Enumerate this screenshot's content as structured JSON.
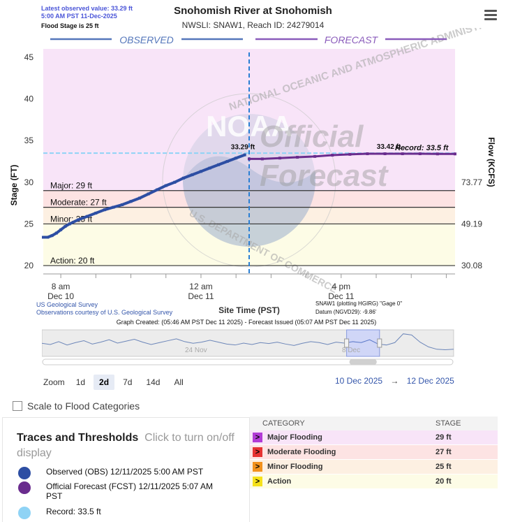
{
  "header": {
    "latest_line1": "Latest observed value: 33.29 ft",
    "latest_line2": "5:00 AM PST 11-Dec-2025",
    "flood_stage": "Flood Stage is 25 ft",
    "title": "Snohomish River at Snohomish",
    "subtitle": "NWSLI: SNAW1, Reach ID: 24279014",
    "menu_icon": "hamburger-menu-icon"
  },
  "chart_data": {
    "type": "line",
    "ylabel": "Stage (FT)",
    "y2label": "Flow (KCFS)",
    "xlabel": "Site Time (PST)",
    "ylim": [
      19,
      46
    ],
    "yticks": [
      "20",
      "25",
      "30",
      "35",
      "40",
      "45"
    ],
    "flow_ticks": [
      {
        "stage": 20,
        "label": "30.08"
      },
      {
        "stage": 25,
        "label": "49.19"
      },
      {
        "stage": 30,
        "label": "73.77"
      }
    ],
    "x_ticks": [
      {
        "hour": 8,
        "line1": "8 am",
        "line2": "Dec 10"
      },
      {
        "hour": 24,
        "line1": "12 am",
        "line2": "Dec 11"
      },
      {
        "hour": 40,
        "line1": "4 pm",
        "line2": "Dec 11"
      }
    ],
    "x_range_hours": [
      6,
      53
    ],
    "observed_label": "OBSERVED",
    "forecast_label": "FORECAST",
    "now_hour": 29.5,
    "thresholds": [
      {
        "name": "Major",
        "label": "Major: 29 ft",
        "value": 29,
        "color": "#f8e4f8"
      },
      {
        "name": "Moderate",
        "label": "Moderate: 27 ft",
        "value": 27,
        "color": "#fde3e3"
      },
      {
        "name": "Minor",
        "label": "Minor: 25 ft",
        "value": 25,
        "color": "#fdf0e2"
      },
      {
        "name": "Action",
        "label": "Action: 20 ft",
        "value": 20,
        "color": "#fdfce6"
      }
    ],
    "record": {
      "value": 33.5,
      "label": "Record: 33.5 ft"
    },
    "series": [
      {
        "name": "Observed (OBS) 12/11/2025 5:00 AM PST",
        "color": "#2d4ea3",
        "x": [
          6,
          6.5,
          7,
          7.5,
          8,
          8.5,
          9,
          10,
          11,
          12,
          13,
          14,
          15,
          16,
          17,
          18,
          19,
          20,
          21,
          22,
          23,
          24,
          25,
          26,
          27,
          28,
          29
        ],
        "y": [
          23.4,
          23.4,
          23.6,
          23.9,
          24.3,
          24.7,
          25.0,
          25.5,
          25.9,
          26.3,
          26.7,
          27.0,
          27.3,
          27.7,
          28.1,
          28.6,
          29.1,
          29.6,
          30.0,
          30.5,
          30.9,
          31.3,
          31.7,
          32.1,
          32.5,
          32.9,
          33.29
        ]
      },
      {
        "name": "Official Forecast (FCST) 12/11/2025 5:07 AM PST",
        "color": "#6a2c8e",
        "x": [
          29.5,
          31,
          33,
          35,
          37,
          39,
          41,
          43,
          45,
          47,
          49,
          51,
          53
        ],
        "y": [
          32.8,
          32.8,
          32.9,
          33.0,
          33.1,
          33.25,
          33.35,
          33.42,
          33.42,
          33.42,
          33.42,
          33.4,
          33.4
        ]
      }
    ],
    "callouts": [
      "33.29 ft",
      "33.42 ft"
    ],
    "watermark_line1": "Official",
    "watermark_line2": "Forecast",
    "seal_text": "NATIONAL OCEANIC AND ATMOSPHERIC ADMINISTRATION",
    "seal_text_bottom": "U.S. DEPARTMENT OF COMMERCE",
    "noaa_text": "NOAA",
    "credit_line1": "US Geological Survey",
    "credit_line2": "Observations courtesy of U.S. Geological Survey",
    "datum_line1": "SNAW1 (plotting HGIRG) \"Gage 0\"",
    "datum_line2": "Datum (NGVD29): -9.86'",
    "created": "Graph Created: (05:46 AM PST Dec 11 2025) - Forecast Issued (05:07 AM PST Dec 11 2025)"
  },
  "navigator": {
    "labels": [
      "24 Nov",
      "8 Dec"
    ],
    "trace": [
      0.55,
      0.5,
      0.62,
      0.48,
      0.58,
      0.66,
      0.52,
      0.6,
      0.7,
      0.56,
      0.64,
      0.72,
      0.6,
      0.5,
      0.58,
      0.66,
      0.74,
      0.62,
      0.55,
      0.6,
      0.68,
      0.6,
      0.52,
      0.48,
      0.56,
      0.5,
      0.58,
      0.54,
      0.6,
      0.52,
      0.46,
      0.55,
      0.62,
      0.58,
      0.5,
      0.6,
      0.56,
      0.62,
      0.58,
      0.7,
      0.52,
      0.48,
      0.58,
      0.95,
      0.9,
      0.6,
      0.4,
      0.3,
      0.28,
      0.3
    ],
    "window_start": 0.74,
    "window_end": 0.82
  },
  "zoom": {
    "label": "Zoom",
    "buttons": [
      "1d",
      "2d",
      "7d",
      "14d",
      "All"
    ],
    "selected": "2d",
    "range_from": "10 Dec 2025",
    "range_arrow": "→",
    "range_to": "12 Dec 2025"
  },
  "scale_checkbox": {
    "label": "Scale to Flood Categories",
    "checked": false
  },
  "traces": {
    "title": "Traces and Thresholds",
    "hint": "Click to turn on/off display",
    "items": [
      {
        "label": "Observed (OBS) 12/11/2025 5:00 AM PST",
        "color": "#2d4ea3"
      },
      {
        "label": "Official Forecast (FCST) 12/11/2025 5:07 AM PST",
        "color": "#6a2c8e"
      },
      {
        "label": "Record: 33.5 ft",
        "color": "#8fd3f5"
      }
    ]
  },
  "categories": {
    "header_category": "CATEGORY",
    "header_stage": "STAGE",
    "rows": [
      {
        "name": "Major Flooding",
        "stage": "29 ft",
        "tag_color": "#b23ad6",
        "bg": "#f8e4f8"
      },
      {
        "name": "Moderate Flooding",
        "stage": "27 ft",
        "tag_color": "#e63232",
        "bg": "#fde3e3"
      },
      {
        "name": "Minor Flooding",
        "stage": "25 ft",
        "tag_color": "#f2921c",
        "bg": "#fdf0e2"
      },
      {
        "name": "Action",
        "stage": "20 ft",
        "tag_color": "#f5e11a",
        "bg": "#fdfce6"
      }
    ]
  }
}
